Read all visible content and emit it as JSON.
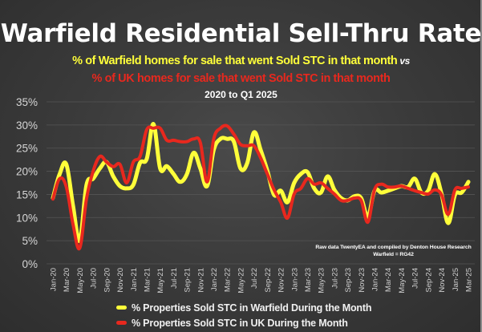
{
  "header": {
    "title": "Warfield Residential Sell-Thru Rate",
    "subtitle_warfield": "% of Warfield homes for sale that went Sold STC in that month",
    "subtitle_vs": "vs",
    "subtitle_uk": "% of UK homes for sale that went Sold STC in that month",
    "period": "2020 to Q1 2025"
  },
  "source_note": {
    "line1": "Raw data TwentyEA and compiled by Denton House Research",
    "line2": "Warfield  = RG42"
  },
  "colors": {
    "warfield": "#ffff3a",
    "uk": "#e8281e",
    "text": "#ffffff"
  },
  "chart_data": {
    "type": "line",
    "title": "Warfield Residential Sell-Thru Rate",
    "xlabel": "",
    "ylabel": "",
    "ylim": [
      0,
      35
    ],
    "yticks": [
      "0%",
      "5%",
      "10%",
      "15%",
      "20%",
      "25%",
      "30%",
      "35%"
    ],
    "grid": true,
    "legend_position": "bottom",
    "x": [
      "Jan-20",
      "Feb-20",
      "Mar-20",
      "Apr-20",
      "May-20",
      "Jun-20",
      "Jul-20",
      "Aug-20",
      "Sep-20",
      "Oct-20",
      "Nov-20",
      "Dec-20",
      "Jan-21",
      "Feb-21",
      "Mar-21",
      "Apr-21",
      "May-21",
      "Jun-21",
      "Jul-21",
      "Aug-21",
      "Sep-21",
      "Oct-21",
      "Nov-21",
      "Dec-21",
      "Jan-22",
      "Feb-22",
      "Mar-22",
      "Apr-22",
      "May-22",
      "Jun-22",
      "Jul-22",
      "Aug-22",
      "Sep-22",
      "Oct-22",
      "Nov-22",
      "Dec-22",
      "Jan-23",
      "Feb-23",
      "Mar-23",
      "Apr-23",
      "May-23",
      "Jun-23",
      "Jul-23",
      "Aug-23",
      "Sep-23",
      "Oct-23",
      "Nov-23",
      "Dec-23",
      "Jan-24",
      "Feb-24",
      "Mar-24",
      "Apr-24",
      "May-24",
      "Jun-24",
      "Jul-24",
      "Aug-24",
      "Sep-24",
      "Oct-24",
      "Nov-24",
      "Dec-24",
      "Jan-25",
      "Feb-25",
      "Mar-25"
    ],
    "xtick_labels": [
      "Jan-20",
      "Mar-20",
      "May-20",
      "Jul-20",
      "Sep-20",
      "Nov-20",
      "Jan-21",
      "Mar-21",
      "May-21",
      "Jul-21",
      "Sep-21",
      "Nov-21",
      "Jan-22",
      "Mar-22",
      "May-22",
      "Jul-22",
      "Sep-22",
      "Nov-22",
      "Jan-23",
      "Mar-23",
      "May-23",
      "Jul-23",
      "Sep-23",
      "Nov-23",
      "Jan-24",
      "Mar-24",
      "May-24",
      "Jul-24",
      "Sep-24",
      "Nov-24",
      "Jan-25",
      "Mar-25"
    ],
    "series": [
      {
        "name": "% Properties Sold STC in Warfield During the Month",
        "color": "#ffff3a",
        "values": [
          14.2,
          19.4,
          21.5,
          12.5,
          5.0,
          17.0,
          18.4,
          20.6,
          22.0,
          18.9,
          16.8,
          16.3,
          17.1,
          21.8,
          22.7,
          30.2,
          20.6,
          21.1,
          19.4,
          17.7,
          19.4,
          24.0,
          20.6,
          16.8,
          24.6,
          27.0,
          27.0,
          26.4,
          20.6,
          21.8,
          28.4,
          24.6,
          20.1,
          14.9,
          15.8,
          13.3,
          17.5,
          19.4,
          19.8,
          16.3,
          15.4,
          18.9,
          16.0,
          14.2,
          13.7,
          14.6,
          14.2,
          10.2,
          15.8,
          15.4,
          15.8,
          16.3,
          16.8,
          16.6,
          18.4,
          15.4,
          15.8,
          19.4,
          15.1,
          8.8,
          14.9,
          15.4,
          17.7
        ]
      },
      {
        "name": "% Properties Sold STC in UK During the Month",
        "color": "#e8281e",
        "values": [
          14.0,
          18.4,
          16.6,
          8.5,
          3.4,
          14.0,
          20.0,
          23.2,
          22.0,
          21.0,
          21.5,
          17.5,
          22.0,
          23.2,
          29.0,
          29.3,
          29.3,
          26.7,
          26.7,
          26.4,
          26.4,
          27.0,
          26.2,
          17.7,
          27.0,
          29.3,
          29.8,
          28.0,
          25.8,
          25.5,
          25.5,
          22.9,
          19.4,
          16.0,
          13.3,
          9.9,
          15.1,
          16.3,
          18.4,
          17.2,
          17.5,
          16.3,
          15.1,
          13.7,
          13.7,
          14.2,
          13.7,
          9.0,
          16.0,
          17.2,
          16.6,
          16.6,
          16.8,
          16.3,
          15.8,
          15.4,
          15.1,
          16.0,
          14.9,
          10.7,
          16.0,
          16.3,
          16.6
        ]
      }
    ]
  }
}
